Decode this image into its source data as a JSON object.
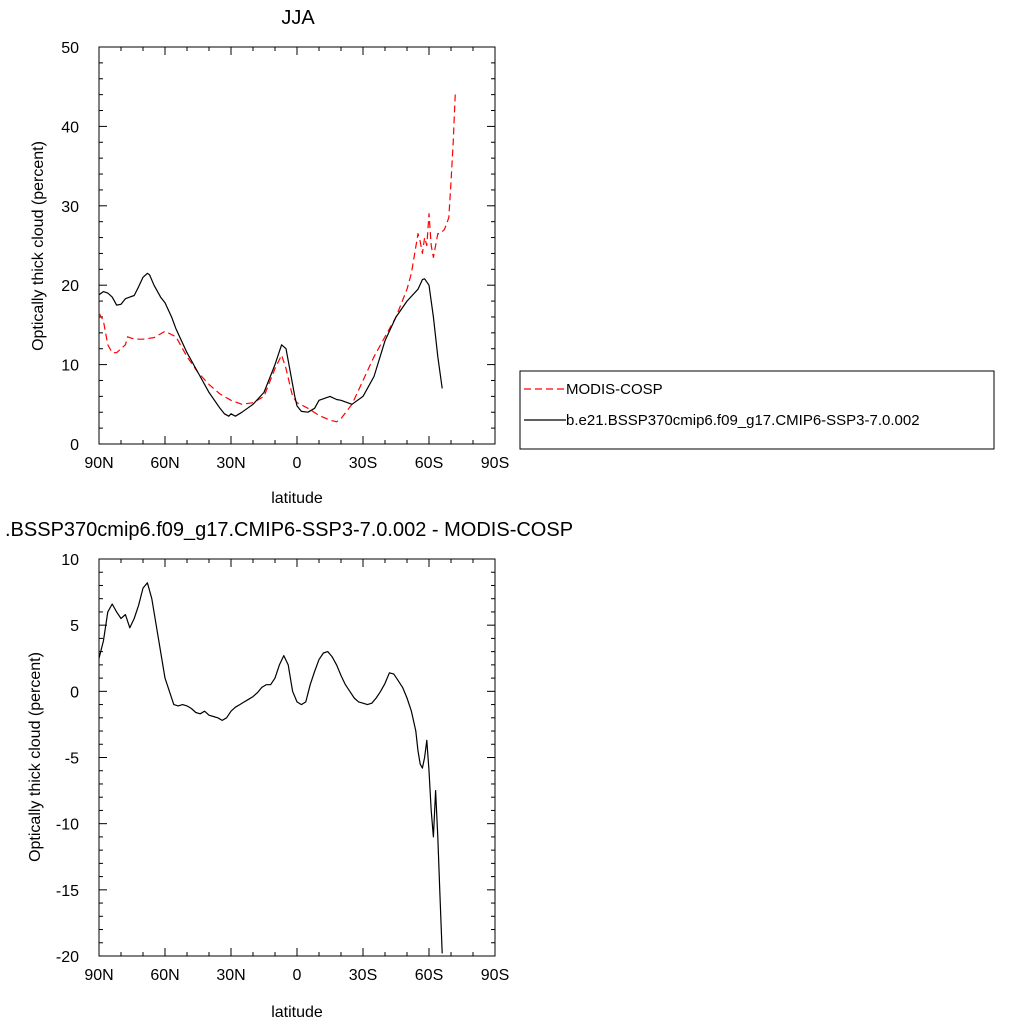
{
  "chart_data": [
    {
      "type": "line",
      "title": "JJA",
      "xlabel": "latitude",
      "ylabel": "Optically thick cloud (percent)",
      "xlim": [
        -90,
        90
      ],
      "ylim": [
        0,
        50
      ],
      "xticks": [
        -90,
        -60,
        -30,
        0,
        30,
        60,
        90
      ],
      "xtick_labels": [
        "90N",
        "60N",
        "30N",
        "0",
        "30S",
        "60S",
        "90S"
      ],
      "yticks": [
        0,
        10,
        20,
        30,
        40,
        50
      ],
      "ytick_labels": [
        "0",
        "10",
        "20",
        "30",
        "40",
        "50"
      ],
      "grid": false,
      "legend": "right",
      "series": [
        {
          "name": "MODIS-COSP",
          "color": "#ff0000",
          "dash": "dashed",
          "x": [
            -90,
            -88,
            -86,
            -84,
            -82,
            -80,
            -78,
            -77,
            -75,
            -72,
            -70,
            -65,
            -60,
            -55,
            -50,
            -45,
            -40,
            -35,
            -30,
            -25,
            -20,
            -15,
            -10,
            -7,
            -5,
            -2,
            0,
            5,
            10,
            15,
            18,
            20,
            25,
            30,
            35,
            40,
            45,
            50,
            52,
            55,
            56,
            57,
            58,
            59,
            60,
            61,
            62,
            63,
            64,
            65,
            67,
            69,
            70,
            71,
            72
          ],
          "y": [
            16.5,
            15.5,
            12.5,
            11.5,
            11.5,
            12.0,
            12.5,
            13.5,
            13.3,
            13.2,
            13.2,
            13.4,
            14.2,
            13.5,
            11.0,
            9.0,
            7.5,
            6.3,
            5.5,
            5.0,
            5.2,
            6.0,
            9.5,
            11.2,
            9.5,
            6.0,
            5.2,
            4.5,
            3.6,
            3.0,
            2.8,
            3.2,
            5.0,
            8.0,
            11.0,
            13.5,
            16.0,
            19.5,
            21.5,
            26.5,
            25.5,
            24.0,
            26.0,
            25.0,
            29.0,
            25.0,
            23.5,
            25.0,
            26.5,
            26.5,
            27.0,
            28.5,
            33.0,
            38.0,
            44.5
          ]
        },
        {
          "name": "b.e21.BSSP370cmip6.f09_g17.CMIP6-SSP3-7.0.002",
          "color": "#000000",
          "dash": "solid",
          "x": [
            -90,
            -88,
            -86,
            -84,
            -82,
            -80,
            -78,
            -76,
            -74,
            -72,
            -70,
            -68,
            -67,
            -65,
            -62,
            -60,
            -57,
            -55,
            -50,
            -45,
            -40,
            -35,
            -33,
            -31,
            -30,
            -28,
            -25,
            -20,
            -15,
            -10,
            -7,
            -5,
            -3,
            -1,
            0,
            2,
            5,
            8,
            10,
            15,
            18,
            20,
            25,
            30,
            35,
            40,
            45,
            50,
            55,
            57,
            58,
            60,
            62,
            64,
            66
          ],
          "y": [
            18.8,
            19.2,
            19.0,
            18.5,
            17.5,
            17.6,
            18.3,
            18.5,
            18.7,
            19.8,
            21.0,
            21.5,
            21.3,
            20.0,
            18.5,
            17.8,
            16.0,
            14.5,
            11.5,
            9.0,
            6.5,
            4.5,
            3.8,
            3.5,
            3.8,
            3.5,
            4.0,
            5.0,
            6.5,
            10.0,
            12.5,
            12.0,
            9.0,
            6.0,
            4.8,
            4.1,
            4.0,
            4.5,
            5.5,
            6.0,
            5.6,
            5.5,
            5.0,
            6.0,
            8.5,
            13.0,
            16.0,
            18.0,
            19.5,
            20.7,
            20.8,
            20.0,
            16.0,
            11.0,
            7.0
          ]
        }
      ]
    },
    {
      "type": "line",
      "title": ".BSSP370cmip6.f09_g17.CMIP6-SSP3-7.0.002 - MODIS-COSP",
      "xlabel": "latitude",
      "ylabel": "Optically thick cloud (percent)",
      "xlim": [
        -90,
        90
      ],
      "ylim": [
        -20,
        10
      ],
      "xticks": [
        -90,
        -60,
        -30,
        0,
        30,
        60,
        90
      ],
      "xtick_labels": [
        "90N",
        "60N",
        "30N",
        "0",
        "30S",
        "60S",
        "90S"
      ],
      "yticks": [
        -20,
        -15,
        -10,
        -5,
        0,
        5,
        10
      ],
      "ytick_labels": [
        "-20",
        "-15",
        "-10",
        "-5",
        "0",
        "5",
        "10"
      ],
      "grid": false,
      "series": [
        {
          "color": "#000000",
          "dash": "solid",
          "x": [
            -90,
            -88,
            -86,
            -84,
            -82,
            -80,
            -78,
            -76,
            -74,
            -72,
            -70,
            -68,
            -66,
            -64,
            -62,
            -60,
            -58,
            -56,
            -54,
            -52,
            -50,
            -48,
            -46,
            -44,
            -42,
            -40,
            -38,
            -36,
            -34,
            -32,
            -30,
            -28,
            -26,
            -24,
            -22,
            -20,
            -18,
            -16,
            -14,
            -12,
            -10,
            -8,
            -6,
            -4,
            -2,
            0,
            2,
            4,
            6,
            8,
            10,
            12,
            14,
            16,
            18,
            20,
            22,
            24,
            26,
            28,
            30,
            32,
            34,
            36,
            38,
            40,
            42,
            44,
            46,
            48,
            50,
            52,
            54,
            55,
            56,
            57,
            58,
            59,
            60,
            61,
            62,
            63,
            64,
            65,
            66
          ],
          "y": [
            2.5,
            3.8,
            6.0,
            6.6,
            6.0,
            5.5,
            5.8,
            4.8,
            5.5,
            6.5,
            7.8,
            8.2,
            7.0,
            5.0,
            3.0,
            1.0,
            0.0,
            -1.0,
            -1.1,
            -1.0,
            -1.1,
            -1.3,
            -1.6,
            -1.7,
            -1.5,
            -1.8,
            -1.9,
            -2.0,
            -2.2,
            -2.0,
            -1.5,
            -1.2,
            -1.0,
            -0.8,
            -0.6,
            -0.4,
            -0.1,
            0.3,
            0.5,
            0.5,
            1.0,
            2.0,
            2.7,
            2.0,
            0.0,
            -0.8,
            -1.0,
            -0.8,
            0.5,
            1.5,
            2.4,
            2.9,
            3.0,
            2.6,
            2.0,
            1.2,
            0.5,
            0.0,
            -0.5,
            -0.8,
            -0.9,
            -1.0,
            -0.9,
            -0.5,
            0.0,
            0.6,
            1.4,
            1.3,
            0.8,
            0.3,
            -0.5,
            -1.5,
            -3.0,
            -4.5,
            -5.5,
            -5.8,
            -5.0,
            -3.7,
            -6.0,
            -9.0,
            -11.0,
            -7.5,
            -11.0,
            -15.5,
            -19.8
          ]
        }
      ]
    }
  ]
}
